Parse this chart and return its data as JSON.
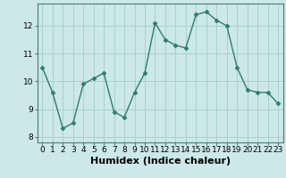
{
  "x": [
    0,
    1,
    2,
    3,
    4,
    5,
    6,
    7,
    8,
    9,
    10,
    11,
    12,
    13,
    14,
    15,
    16,
    17,
    18,
    19,
    20,
    21,
    22,
    23
  ],
  "y": [
    10.5,
    9.6,
    8.3,
    8.5,
    9.9,
    10.1,
    10.3,
    8.9,
    8.7,
    9.6,
    10.3,
    12.1,
    11.5,
    11.3,
    11.2,
    12.4,
    12.5,
    12.2,
    12.0,
    10.5,
    9.7,
    9.6,
    9.6,
    9.2
  ],
  "line_color": "#2e7d6e",
  "marker": "D",
  "markersize": 2.5,
  "linewidth": 1.0,
  "xlabel": "Humidex (Indice chaleur)",
  "xlabel_fontsize": 8,
  "background_color": "#cce8e8",
  "grid_color": "#aacfcf",
  "xlim": [
    -0.5,
    23.5
  ],
  "ylim": [
    7.8,
    12.8
  ],
  "yticks": [
    8,
    9,
    10,
    11,
    12
  ],
  "xticks": [
    0,
    1,
    2,
    3,
    4,
    5,
    6,
    7,
    8,
    9,
    10,
    11,
    12,
    13,
    14,
    15,
    16,
    17,
    18,
    19,
    20,
    21,
    22,
    23
  ],
  "tick_fontsize": 6.5,
  "spine_color": "#4a7a7a"
}
